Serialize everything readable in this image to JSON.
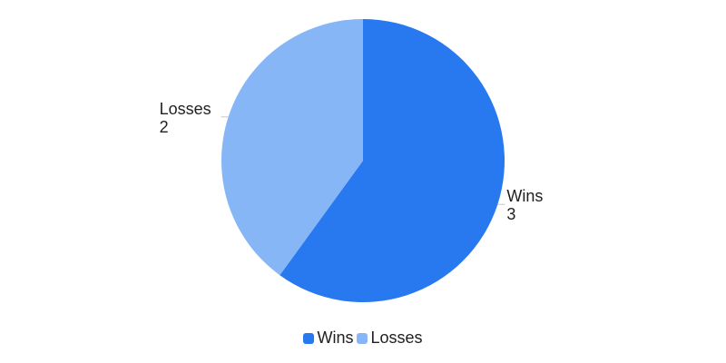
{
  "chart_data": {
    "type": "pie",
    "slices": [
      {
        "label": "Wins",
        "value": 3,
        "color": "#2878f0"
      },
      {
        "label": "Losses",
        "value": 2,
        "color": "#86b6f6"
      }
    ],
    "start_angle_deg": 0,
    "direction": "clockwise",
    "legend": {
      "position": "bottom",
      "items": [
        {
          "label": "Wins",
          "color": "#2878f0"
        },
        {
          "label": "Losses",
          "color": "#86b6f6"
        }
      ]
    }
  }
}
